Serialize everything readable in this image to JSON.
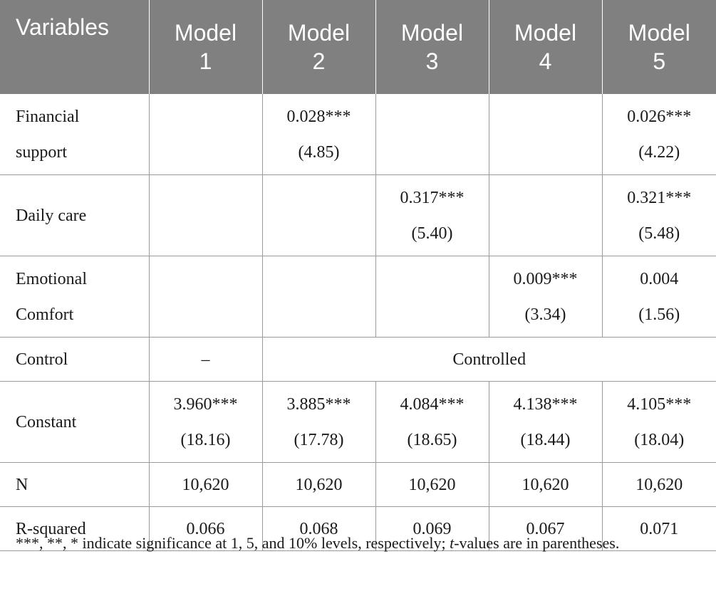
{
  "table": {
    "headers": [
      "Variables",
      "Model\n1",
      "Model\n2",
      "Model\n3",
      "Model\n4",
      "Model\n5"
    ],
    "rows": [
      {
        "label": "Financial\nsupport",
        "cells": [
          {
            "coef": "",
            "t": ""
          },
          {
            "coef": "0.028***",
            "t": "(4.85)"
          },
          {
            "coef": "",
            "t": ""
          },
          {
            "coef": "",
            "t": ""
          },
          {
            "coef": "0.026***",
            "t": "(4.22)"
          }
        ]
      },
      {
        "label": "Daily care",
        "cells": [
          {
            "coef": "",
            "t": ""
          },
          {
            "coef": "",
            "t": ""
          },
          {
            "coef": "0.317***",
            "t": "(5.40)"
          },
          {
            "coef": "",
            "t": ""
          },
          {
            "coef": "0.321***",
            "t": "(5.48)"
          }
        ]
      },
      {
        "label": "Emotional\nComfort",
        "cells": [
          {
            "coef": "",
            "t": ""
          },
          {
            "coef": "",
            "t": ""
          },
          {
            "coef": "",
            "t": ""
          },
          {
            "coef": "0.009***",
            "t": "(3.34)"
          },
          {
            "coef": "0.004",
            "t": "(1.56)"
          }
        ]
      }
    ],
    "control": {
      "label": "Control",
      "model1": "–",
      "rest": "Controlled"
    },
    "constant": {
      "label": "Constant",
      "cells": [
        {
          "coef": "3.960***",
          "t": "(18.16)"
        },
        {
          "coef": "3.885***",
          "t": "(17.78)"
        },
        {
          "coef": "4.084***",
          "t": "(18.65)"
        },
        {
          "coef": "4.138***",
          "t": "(18.44)"
        },
        {
          "coef": "4.105***",
          "t": "(18.04)"
        }
      ]
    },
    "n": {
      "label": "N",
      "values": [
        "10,620",
        "10,620",
        "10,620",
        "10,620",
        "10,620"
      ]
    },
    "r2": {
      "label": "R-squared",
      "values": [
        "0.066",
        "0.068",
        "0.069",
        "0.067",
        "0.071"
      ]
    }
  },
  "note": {
    "before": "***, **, * indicate significance at 1, 5, and 10% levels, respectively; ",
    "italic": "t",
    "after": "-values are in parentheses."
  }
}
